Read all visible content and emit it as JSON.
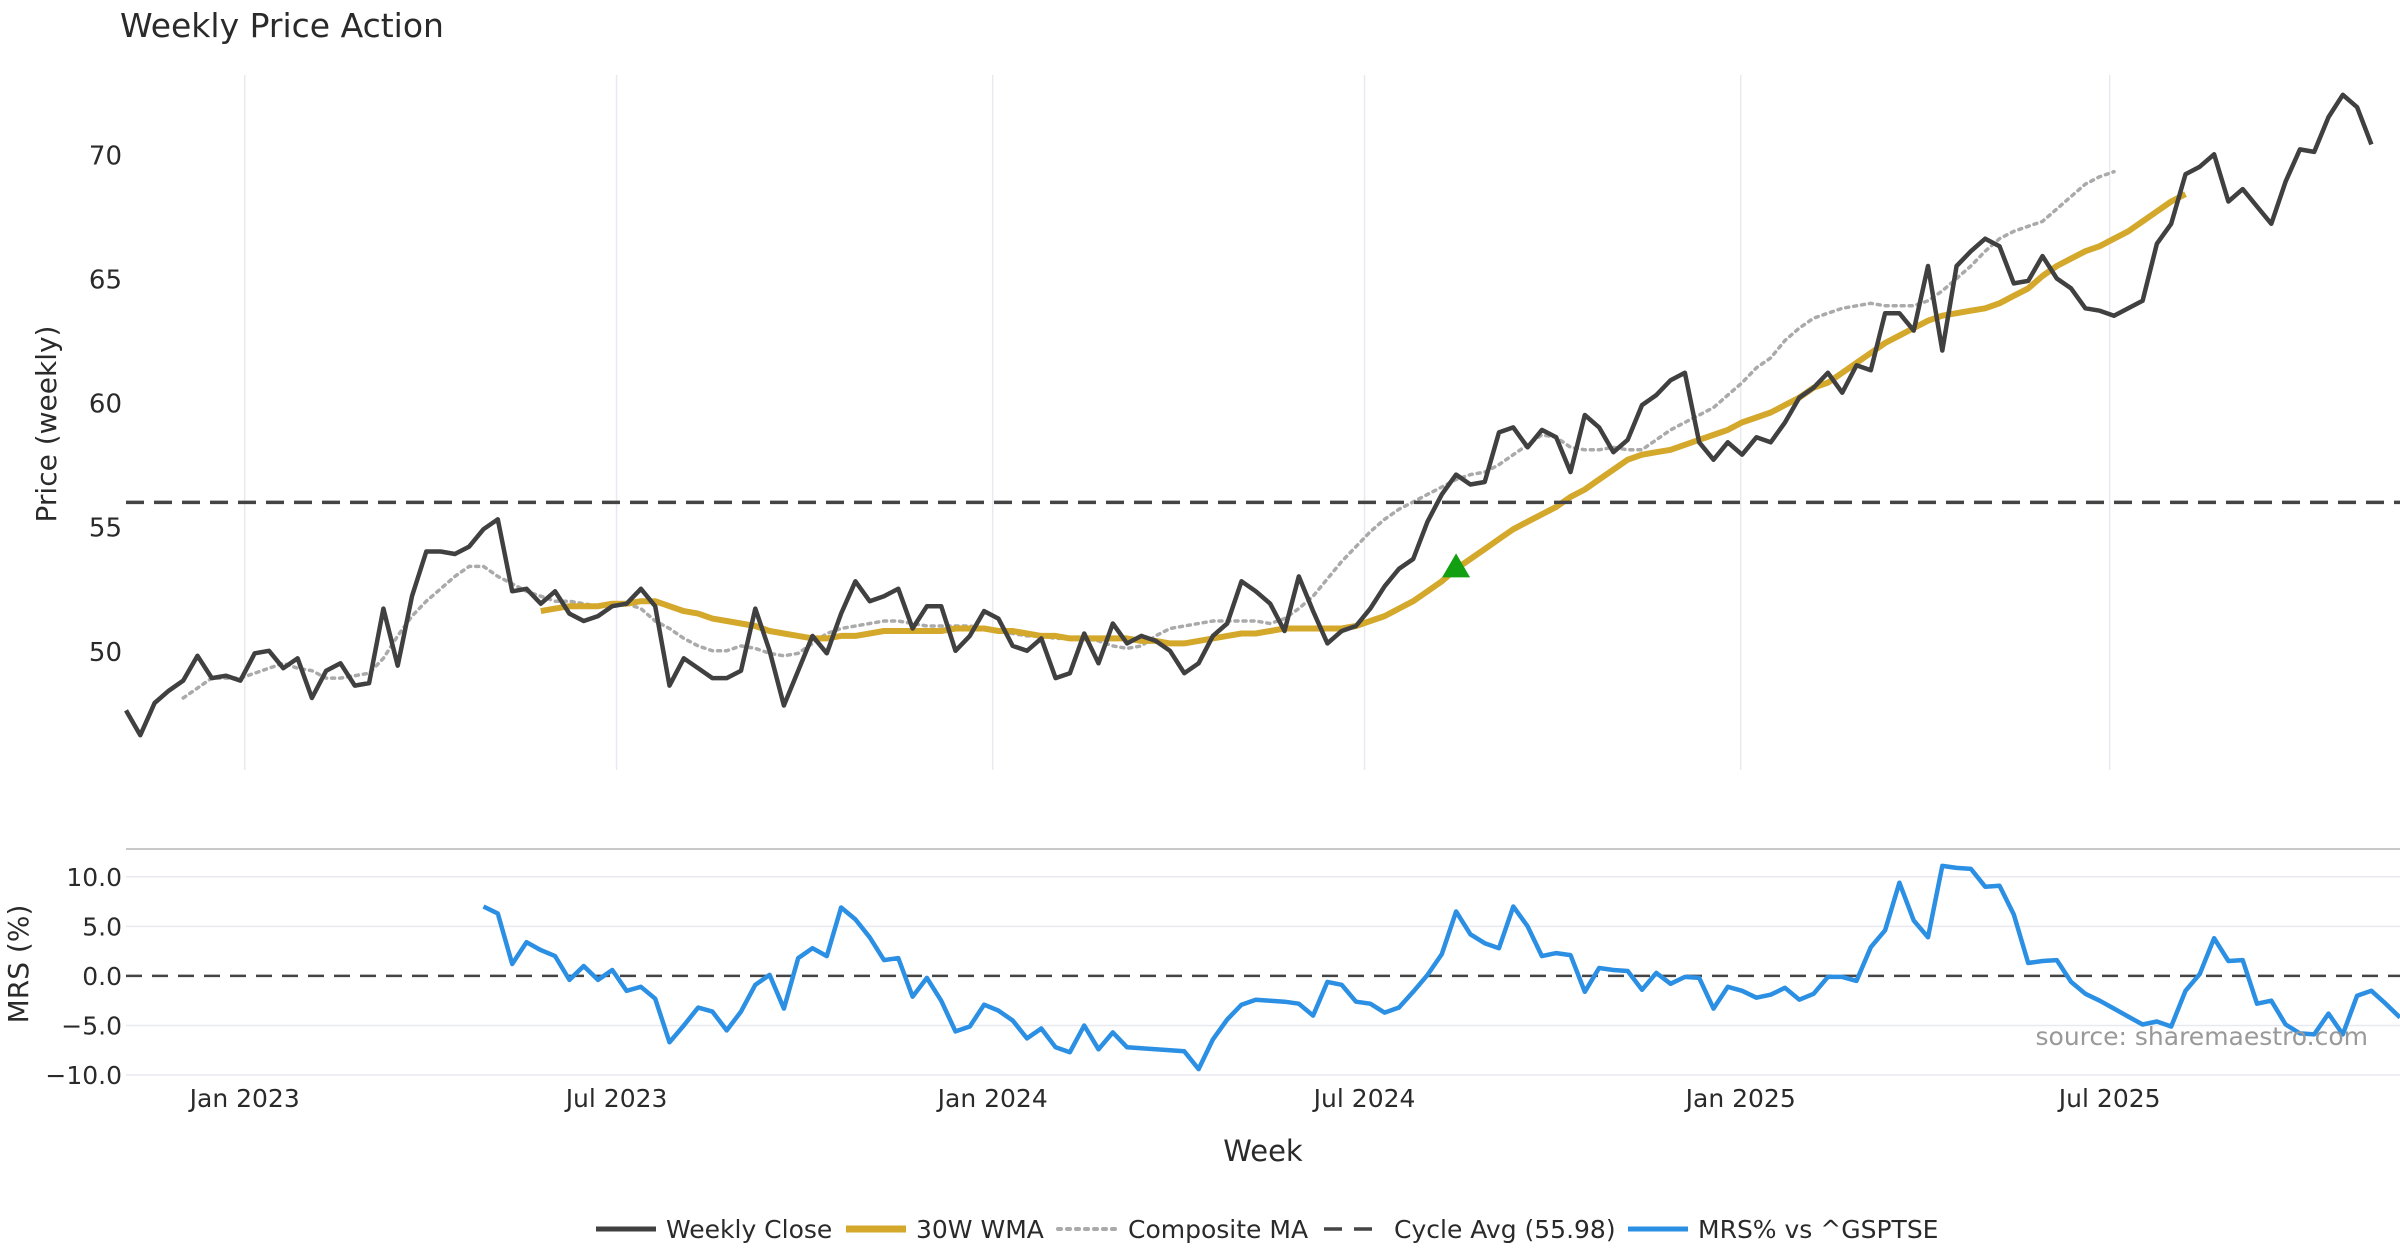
{
  "colors": {
    "close": "#404040",
    "wma": "#d4a82b",
    "composite": "#aaaaaa",
    "cycle": "#444444",
    "mrs": "#2b8fe3",
    "marker": "#12a012",
    "grid": "#e8eaf0",
    "source": "#999999"
  },
  "source_text": "source: sharemaestro.com",
  "chart_data": [
    {
      "id": "price",
      "type": "line",
      "title": "Weekly Price Action",
      "ylabel": "Price (weekly)",
      "xlabel": "",
      "ylim": [
        45.2,
        73.8
      ],
      "yticks": [
        50,
        55,
        60,
        65,
        70
      ],
      "week_start": "2022-11-07",
      "weeks": 160,
      "cycle_avg": 55.98,
      "buy_signal": {
        "week": 93,
        "value": 53.4
      },
      "series": [
        {
          "name": "Weekly Close",
          "start_week": 0,
          "values": [
            47.6,
            46.6,
            47.9,
            48.4,
            48.8,
            49.8,
            48.9,
            49.0,
            48.8,
            49.9,
            50.0,
            49.3,
            49.7,
            48.1,
            49.2,
            49.5,
            48.6,
            48.7,
            51.7,
            49.4,
            52.2,
            54.0,
            54.0,
            53.9,
            54.2,
            54.9,
            55.3,
            52.4,
            52.5,
            51.9,
            52.4,
            51.5,
            51.2,
            51.4,
            51.8,
            51.9,
            52.5,
            51.8,
            48.6,
            49.7,
            49.3,
            48.9,
            48.9,
            49.2,
            51.7,
            50.0,
            47.8,
            49.2,
            50.6,
            49.9,
            51.5,
            52.8,
            52.0,
            52.2,
            52.5,
            50.9,
            51.8,
            51.8,
            50.0,
            50.6,
            51.6,
            51.3,
            50.2,
            50.0,
            50.5,
            48.9,
            49.1,
            50.7,
            49.5,
            51.1,
            50.3,
            50.6,
            50.4,
            50.0,
            49.1,
            49.5,
            50.6,
            51.1,
            52.8,
            52.4,
            51.9,
            50.8,
            53.0,
            51.6,
            50.3,
            50.8,
            51.0,
            51.7,
            52.6,
            53.3,
            53.7,
            55.2,
            56.3,
            57.1,
            56.7,
            56.8,
            58.8,
            59.0,
            58.2,
            58.9,
            58.6,
            57.2,
            59.5,
            59.0,
            58.0,
            58.5,
            59.9,
            60.3,
            60.9,
            61.2,
            58.4,
            57.7,
            58.4,
            57.9,
            58.6,
            58.4,
            59.2,
            60.2,
            60.6,
            61.2,
            60.4,
            61.5,
            61.3,
            63.6,
            63.6,
            62.9,
            65.5,
            62.1,
            65.5,
            66.1,
            66.6,
            66.3,
            64.8,
            64.9,
            65.9,
            65.0,
            64.6,
            63.8,
            63.7,
            63.5,
            63.8,
            64.1,
            66.4,
            67.2,
            69.2,
            69.5,
            70.0,
            68.1,
            68.6,
            67.9,
            67.2,
            68.9,
            70.2,
            70.1,
            71.5,
            72.4,
            71.9,
            70.4
          ]
        },
        {
          "name": "30W WMA",
          "start_week": 29,
          "values": [
            51.6,
            51.7,
            51.8,
            51.8,
            51.8,
            51.9,
            51.9,
            52.0,
            52.0,
            51.8,
            51.6,
            51.5,
            51.3,
            51.2,
            51.1,
            51.0,
            50.8,
            50.7,
            50.6,
            50.5,
            50.5,
            50.6,
            50.6,
            50.7,
            50.8,
            50.8,
            50.8,
            50.8,
            50.8,
            50.9,
            50.9,
            50.9,
            50.8,
            50.8,
            50.7,
            50.6,
            50.6,
            50.5,
            50.5,
            50.5,
            50.5,
            50.5,
            50.4,
            50.4,
            50.3,
            50.3,
            50.4,
            50.5,
            50.6,
            50.7,
            50.7,
            50.8,
            50.9,
            50.9,
            50.9,
            50.9,
            50.9,
            51.0,
            51.2,
            51.4,
            51.7,
            52.0,
            52.4,
            52.8,
            53.3,
            53.7,
            54.1,
            54.5,
            54.9,
            55.2,
            55.5,
            55.8,
            56.2,
            56.5,
            56.9,
            57.3,
            57.7,
            57.9,
            58.0,
            58.1,
            58.3,
            58.5,
            58.7,
            58.9,
            59.2,
            59.4,
            59.6,
            59.9,
            60.2,
            60.6,
            60.8,
            61.2,
            61.6,
            62.0,
            62.4,
            62.7,
            63.0,
            63.3,
            63.5,
            63.6,
            63.7,
            63.8,
            64.0,
            64.3,
            64.6,
            65.1,
            65.5,
            65.8,
            66.1,
            66.3,
            66.6,
            66.9,
            67.3,
            67.7,
            68.1,
            68.4
          ]
        },
        {
          "name": "Composite MA",
          "start_week": 4,
          "values": [
            48.1,
            48.5,
            48.9,
            48.9,
            48.9,
            49.1,
            49.3,
            49.5,
            49.3,
            49.2,
            48.9,
            48.9,
            49.0,
            49.1,
            49.7,
            50.6,
            51.4,
            52.0,
            52.5,
            53.0,
            53.4,
            53.4,
            53.0,
            52.7,
            52.4,
            52.2,
            52.0,
            52.0,
            51.9,
            51.8,
            51.9,
            51.9,
            51.7,
            51.2,
            50.9,
            50.5,
            50.2,
            50.0,
            50.0,
            50.2,
            50.1,
            49.9,
            49.8,
            49.9,
            50.3,
            50.7,
            50.9,
            51.0,
            51.1,
            51.2,
            51.2,
            51.1,
            51.0,
            51.0,
            51.0,
            51.0,
            50.9,
            50.8,
            50.7,
            50.6,
            50.6,
            50.5,
            50.5,
            50.5,
            50.4,
            50.2,
            50.1,
            50.2,
            50.6,
            50.9,
            51.0,
            51.1,
            51.2,
            51.2,
            51.2,
            51.2,
            51.1,
            51.3,
            51.7,
            52.2,
            52.9,
            53.6,
            54.2,
            54.8,
            55.3,
            55.7,
            56.0,
            56.3,
            56.6,
            56.9,
            57.1,
            57.2,
            57.5,
            57.9,
            58.3,
            58.7,
            58.6,
            58.2,
            58.1,
            58.1,
            58.2,
            58.1,
            58.1,
            58.5,
            58.9,
            59.2,
            59.5,
            59.8,
            60.3,
            60.8,
            61.4,
            61.8,
            62.5,
            63.0,
            63.4,
            63.6,
            63.8,
            63.9,
            64.0,
            63.9,
            63.9,
            63.9,
            64.1,
            64.5,
            65.0,
            65.5,
            66.1,
            66.6,
            66.9,
            67.1,
            67.3,
            67.8,
            68.3,
            68.8,
            69.1,
            69.3
          ]
        }
      ]
    },
    {
      "id": "mrs",
      "type": "line",
      "title": "",
      "ylabel": "MRS (%)",
      "xlabel": "Week",
      "ylim": [
        -10.5,
        12.5
      ],
      "yticks": [
        10,
        5,
        0,
        -5,
        -10
      ],
      "ytick_labels": [
        "10.0",
        "5.0",
        "0.0",
        "−5.0",
        "−10.0"
      ],
      "xticks": [
        {
          "label": "Jan 2023",
          "week": 8.3
        },
        {
          "label": "Jul 2023",
          "week": 34.3
        },
        {
          "label": "Jan 2024",
          "week": 60.6
        },
        {
          "label": "Jul 2024",
          "week": 86.6
        },
        {
          "label": "Jan 2025",
          "week": 112.9
        },
        {
          "label": "Jul 2025",
          "week": 138.7
        }
      ],
      "series": [
        {
          "name": "MRS% vs ^GSPTSE",
          "start_week": 25,
          "values": [
            7.0,
            6.3,
            1.2,
            3.4,
            2.6,
            2.0,
            -0.4,
            1.0,
            -0.4,
            0.6,
            -1.5,
            -1.1,
            -2.3,
            -6.7,
            -5.0,
            -3.2,
            -3.6,
            -5.5,
            -3.6,
            -0.9,
            0.1,
            -3.3,
            1.8,
            2.8,
            2.0,
            6.9,
            5.7,
            3.9,
            1.6,
            1.8,
            -2.1,
            -0.2,
            -2.5,
            -5.6,
            -5.1,
            -2.9,
            -3.5,
            -4.5,
            -6.3,
            -5.3,
            -7.2,
            -7.7,
            -5.0,
            -7.4,
            -5.7,
            -7.2,
            -7.3,
            -7.4,
            -7.5,
            -7.6,
            -9.4,
            -6.4,
            -4.4,
            -2.9,
            -2.4,
            -2.5,
            -2.6,
            -2.8,
            -4.0,
            -0.6,
            -0.9,
            -2.6,
            -2.8,
            -3.7,
            -3.2,
            -1.6,
            0.1,
            2.2,
            6.5,
            4.2,
            3.3,
            2.8,
            7.0,
            5.0,
            2.0,
            2.3,
            2.1,
            -1.6,
            0.8,
            0.6,
            0.5,
            -1.4,
            0.3,
            -0.8,
            -0.1,
            -0.2,
            -3.3,
            -1.1,
            -1.5,
            -2.2,
            -1.9,
            -1.2,
            -2.4,
            -1.8,
            -0.1,
            -0.1,
            -0.5,
            2.9,
            4.6,
            9.4,
            5.6,
            3.9,
            11.1,
            10.9,
            10.8,
            9.0,
            9.1,
            6.2,
            1.3,
            1.5,
            1.6,
            -0.6,
            -1.8,
            -2.5,
            -3.3,
            -4.1,
            -4.9,
            -4.6,
            -5.1,
            -1.5,
            0.2,
            3.8,
            1.5,
            1.6,
            -2.8,
            -2.5,
            -4.9,
            -5.8,
            -5.9,
            -3.8,
            -5.9,
            -2.0,
            -1.5,
            -2.8,
            -4.2
          ]
        }
      ]
    }
  ],
  "legend": [
    {
      "name": "Weekly Close",
      "style": "solid",
      "key": "close"
    },
    {
      "name": "30W WMA",
      "style": "solid-thick",
      "key": "wma"
    },
    {
      "name": "Composite MA",
      "style": "dotted",
      "key": "composite"
    },
    {
      "name": "Cycle Avg (55.98)",
      "style": "dashed",
      "key": "cycle"
    },
    {
      "name": "MRS% vs ^GSPTSE",
      "style": "solid",
      "key": "mrs"
    }
  ]
}
